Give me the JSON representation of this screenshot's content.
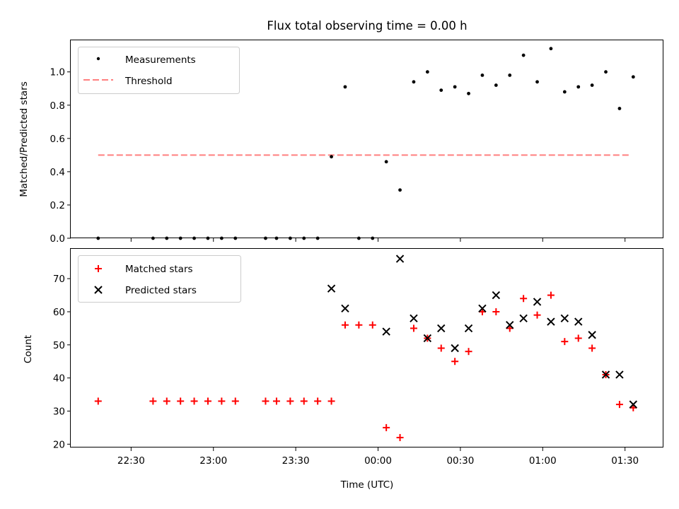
{
  "figure": {
    "title": "Flux total observing time = 0.00 h"
  },
  "chart_data": [
    {
      "type": "scatter",
      "ylabel": "Matched/Predicted stars",
      "ylim": [
        0,
        1.19
      ],
      "xlim": [
        "22:08",
        "01:44"
      ],
      "yticks": [
        0.0,
        0.2,
        0.4,
        0.6,
        0.8,
        1.0
      ],
      "grid": false,
      "legend_position": "top-left",
      "threshold": {
        "name": "Threshold",
        "y": 0.5,
        "x_start": "22:18",
        "x_end": "01:32",
        "color": "#ff7f7f"
      },
      "series": [
        {
          "name": "Measurements",
          "marker": "dot",
          "color": "#000000",
          "points": [
            {
              "x": "22:18",
              "y": 0.0
            },
            {
              "x": "22:38",
              "y": 0.0
            },
            {
              "x": "22:43",
              "y": 0.0
            },
            {
              "x": "22:48",
              "y": 0.0
            },
            {
              "x": "22:53",
              "y": 0.0
            },
            {
              "x": "22:58",
              "y": 0.0
            },
            {
              "x": "23:03",
              "y": 0.0
            },
            {
              "x": "23:08",
              "y": 0.0
            },
            {
              "x": "23:19",
              "y": 0.0
            },
            {
              "x": "23:23",
              "y": 0.0
            },
            {
              "x": "23:28",
              "y": 0.0
            },
            {
              "x": "23:33",
              "y": 0.0
            },
            {
              "x": "23:38",
              "y": 0.0
            },
            {
              "x": "23:43",
              "y": 0.49
            },
            {
              "x": "23:48",
              "y": 0.91
            },
            {
              "x": "23:53",
              "y": 0.0
            },
            {
              "x": "23:58",
              "y": 0.0
            },
            {
              "x": "00:03",
              "y": 0.46
            },
            {
              "x": "00:08",
              "y": 0.29
            },
            {
              "x": "00:13",
              "y": 0.94
            },
            {
              "x": "00:18",
              "y": 1.0
            },
            {
              "x": "00:23",
              "y": 0.89
            },
            {
              "x": "00:28",
              "y": 0.91
            },
            {
              "x": "00:33",
              "y": 0.87
            },
            {
              "x": "00:38",
              "y": 0.98
            },
            {
              "x": "00:43",
              "y": 0.92
            },
            {
              "x": "00:48",
              "y": 0.98
            },
            {
              "x": "00:53",
              "y": 1.1
            },
            {
              "x": "00:58",
              "y": 0.94
            },
            {
              "x": "01:03",
              "y": 1.14
            },
            {
              "x": "01:08",
              "y": 0.88
            },
            {
              "x": "01:13",
              "y": 0.91
            },
            {
              "x": "01:18",
              "y": 0.92
            },
            {
              "x": "01:23",
              "y": 1.0
            },
            {
              "x": "01:28",
              "y": 0.78
            },
            {
              "x": "01:33",
              "y": 0.97
            }
          ]
        }
      ]
    },
    {
      "type": "scatter",
      "xlabel": "Time (UTC)",
      "ylabel": "Count",
      "ylim": [
        19,
        79
      ],
      "xlim": [
        "22:08",
        "01:44"
      ],
      "xticks": [
        "22:30",
        "23:00",
        "23:30",
        "00:00",
        "00:30",
        "01:00",
        "01:30"
      ],
      "yticks": [
        20,
        30,
        40,
        50,
        60,
        70
      ],
      "grid": false,
      "legend_position": "top-left",
      "series": [
        {
          "name": "Matched stars",
          "marker": "plus",
          "color": "#ff0000",
          "points": [
            {
              "x": "22:18",
              "y": 33
            },
            {
              "x": "22:38",
              "y": 33
            },
            {
              "x": "22:43",
              "y": 33
            },
            {
              "x": "22:48",
              "y": 33
            },
            {
              "x": "22:53",
              "y": 33
            },
            {
              "x": "22:58",
              "y": 33
            },
            {
              "x": "23:03",
              "y": 33
            },
            {
              "x": "23:08",
              "y": 33
            },
            {
              "x": "23:19",
              "y": 33
            },
            {
              "x": "23:23",
              "y": 33
            },
            {
              "x": "23:28",
              "y": 33
            },
            {
              "x": "23:33",
              "y": 33
            },
            {
              "x": "23:38",
              "y": 33
            },
            {
              "x": "23:43",
              "y": 33
            },
            {
              "x": "23:48",
              "y": 56
            },
            {
              "x": "23:53",
              "y": 56
            },
            {
              "x": "23:58",
              "y": 56
            },
            {
              "x": "00:03",
              "y": 25
            },
            {
              "x": "00:08",
              "y": 22
            },
            {
              "x": "00:13",
              "y": 55
            },
            {
              "x": "00:18",
              "y": 52
            },
            {
              "x": "00:23",
              "y": 49
            },
            {
              "x": "00:28",
              "y": 45
            },
            {
              "x": "00:33",
              "y": 48
            },
            {
              "x": "00:38",
              "y": 60
            },
            {
              "x": "00:43",
              "y": 60
            },
            {
              "x": "00:48",
              "y": 55
            },
            {
              "x": "00:53",
              "y": 64
            },
            {
              "x": "00:58",
              "y": 59
            },
            {
              "x": "01:03",
              "y": 65
            },
            {
              "x": "01:08",
              "y": 51
            },
            {
              "x": "01:13",
              "y": 52
            },
            {
              "x": "01:18",
              "y": 49
            },
            {
              "x": "01:23",
              "y": 41
            },
            {
              "x": "01:28",
              "y": 32
            },
            {
              "x": "01:33",
              "y": 31
            }
          ]
        },
        {
          "name": "Predicted stars",
          "marker": "x",
          "color": "#000000",
          "points": [
            {
              "x": "23:43",
              "y": 67
            },
            {
              "x": "23:48",
              "y": 61
            },
            {
              "x": "00:03",
              "y": 54
            },
            {
              "x": "00:08",
              "y": 76
            },
            {
              "x": "00:13",
              "y": 58
            },
            {
              "x": "00:18",
              "y": 52
            },
            {
              "x": "00:23",
              "y": 55
            },
            {
              "x": "00:28",
              "y": 49
            },
            {
              "x": "00:33",
              "y": 55
            },
            {
              "x": "00:38",
              "y": 61
            },
            {
              "x": "00:43",
              "y": 65
            },
            {
              "x": "00:48",
              "y": 56
            },
            {
              "x": "00:53",
              "y": 58
            },
            {
              "x": "00:58",
              "y": 63
            },
            {
              "x": "01:03",
              "y": 57
            },
            {
              "x": "01:08",
              "y": 58
            },
            {
              "x": "01:13",
              "y": 57
            },
            {
              "x": "01:18",
              "y": 53
            },
            {
              "x": "01:23",
              "y": 41
            },
            {
              "x": "01:28",
              "y": 41
            },
            {
              "x": "01:33",
              "y": 32
            }
          ]
        }
      ]
    }
  ]
}
